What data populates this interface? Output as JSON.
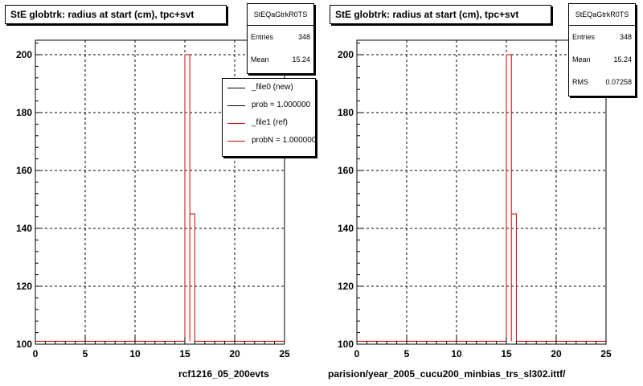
{
  "pads": [
    {
      "title": "StE globtrk: radius at start (cm), tpc+svt",
      "stats": {
        "name": "StEQaGtrkR0TS",
        "rows": [
          {
            "label": "Entries",
            "value": "348"
          },
          {
            "label": "Mean",
            "value": "15.24"
          }
        ]
      },
      "legend": [
        {
          "label": "_file0 (new)",
          "color": "#000000"
        },
        {
          "label": "prob = 1.000000",
          "color": "#000000"
        },
        {
          "label": "_file1 (ref)",
          "color": "#cc0000"
        },
        {
          "label": "probN = 1.000000",
          "color": "#cc0000"
        }
      ],
      "xtitle": "rcf1216_05_200evts"
    },
    {
      "title": "StE globtrk: radius at start (cm), tpc+svt",
      "stats": {
        "name": "StEQaGtrkR0TS",
        "rows": [
          {
            "label": "Entries",
            "value": "348"
          },
          {
            "label": "Mean",
            "value": "15.24"
          },
          {
            "label": "RMS",
            "value": "0.07258"
          }
        ]
      },
      "legend": [],
      "xtitle": "parision/year_2005_cucu200_minbias_trs_sl302.ittf/"
    }
  ],
  "chart_data": [
    {
      "type": "line",
      "title": "StE globtrk: radius at start (cm), tpc+svt",
      "xlim": [
        0,
        25
      ],
      "ylim": [
        100,
        205
      ],
      "x_ticks": [
        0,
        5,
        10,
        15,
        20,
        25
      ],
      "y_ticks": [
        100,
        120,
        140,
        160,
        180,
        200
      ],
      "grid": true,
      "legend_position": "top-right",
      "series": [
        {
          "name": "_file1 (ref)",
          "color": "#cc0000",
          "style": "step",
          "bin_width": 0.5,
          "baseline": 101,
          "bins": [
            {
              "x": 15.0,
              "y": 200
            },
            {
              "x": 15.5,
              "y": 145
            }
          ]
        }
      ]
    },
    {
      "type": "line",
      "title": "StE globtrk: radius at start (cm), tpc+svt",
      "xlim": [
        0,
        25
      ],
      "ylim": [
        100,
        205
      ],
      "x_ticks": [
        0,
        5,
        10,
        15,
        20,
        25
      ],
      "y_ticks": [
        100,
        120,
        140,
        160,
        180,
        200
      ],
      "grid": true,
      "series": [
        {
          "color": "#cc0000",
          "style": "step",
          "bin_width": 0.5,
          "baseline": 101,
          "bins": [
            {
              "x": 15.0,
              "y": 200
            },
            {
              "x": 15.5,
              "y": 145
            }
          ]
        }
      ]
    }
  ]
}
